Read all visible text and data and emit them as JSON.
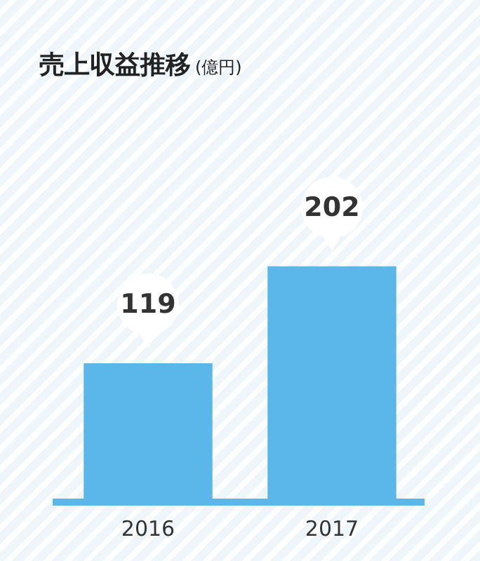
{
  "chart_data": {
    "type": "bar",
    "title": "売上収益推移",
    "subtitle": "(億円)",
    "categories": [
      "2016",
      "2017"
    ],
    "values": [
      119,
      202
    ],
    "color": "#5bb6e9",
    "data_labels": true,
    "legend": false
  }
}
